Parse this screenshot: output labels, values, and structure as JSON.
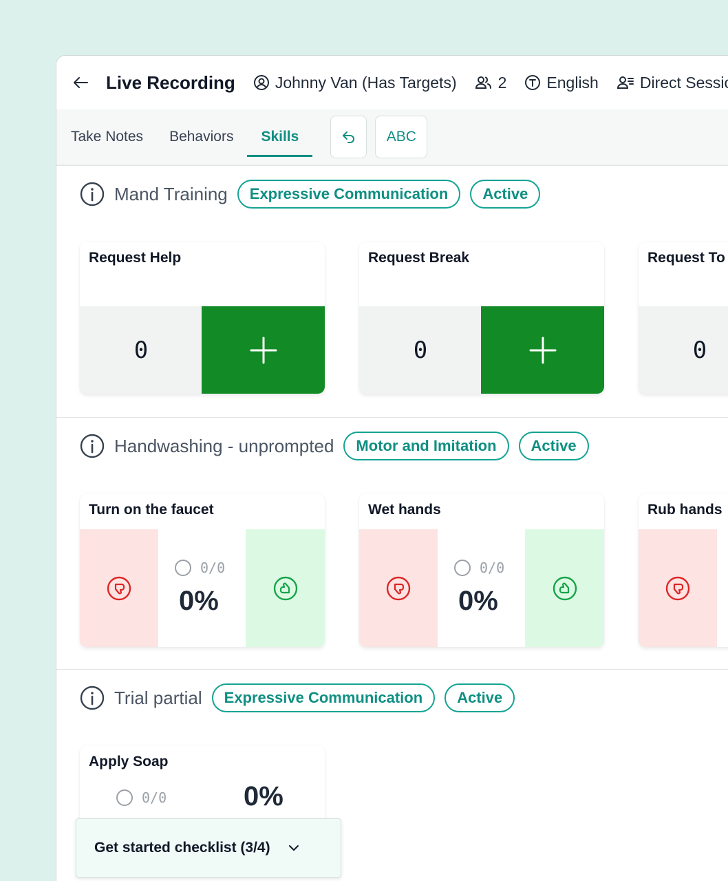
{
  "header": {
    "title": "Live Recording",
    "client": "Johnny Van (Has Targets)",
    "participants": "2",
    "language": "English",
    "session_type": "Direct Session"
  },
  "tabs": [
    {
      "label": "Take Notes",
      "active": false
    },
    {
      "label": "Behaviors",
      "active": false
    },
    {
      "label": "Skills",
      "active": true
    }
  ],
  "toolbar": {
    "abc_label": "ABC"
  },
  "sections": [
    {
      "title": "Mand Training",
      "category": "Expressive Communication",
      "status": "Active",
      "cards": [
        {
          "title": "Request Help",
          "count": "0"
        },
        {
          "title": "Request Break",
          "count": "0"
        },
        {
          "title": "Request To",
          "count": "0"
        }
      ]
    },
    {
      "title": "Handwashing - unprompted",
      "category": "Motor and Imitation",
      "status": "Active",
      "cards": [
        {
          "title": "Turn on the faucet",
          "ratio": "0/0",
          "percent": "0%"
        },
        {
          "title": "Wet hands",
          "ratio": "0/0",
          "percent": "0%"
        },
        {
          "title": "Rub hands"
        }
      ]
    },
    {
      "title": "Trial partial",
      "category": "Expressive Communication",
      "status": "Active",
      "cards": [
        {
          "title": "Apply Soap",
          "ratio": "0/0",
          "percent": "0%"
        }
      ]
    }
  ],
  "checklist": {
    "label": "Get started checklist (3/4)"
  },
  "colors": {
    "accent": "#0f8f82",
    "plus_green": "#128b26",
    "minus_bg": "#fde3e1",
    "plus_bg": "#dcfae3",
    "background": "#dcf1ec"
  }
}
